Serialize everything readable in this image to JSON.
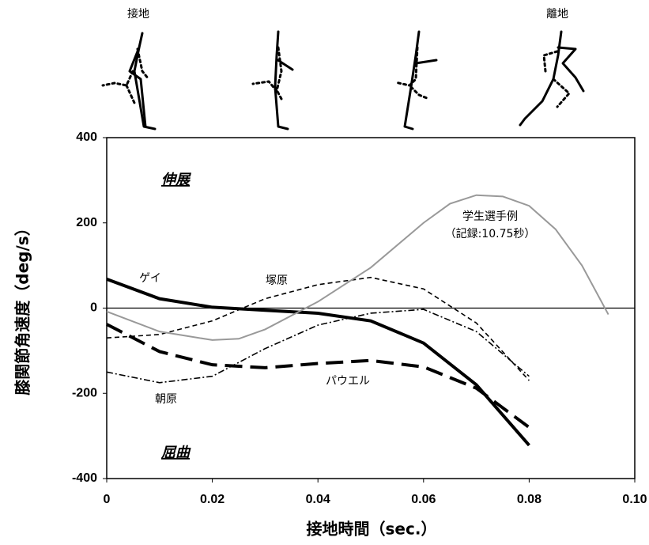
{
  "chart_data": {
    "type": "line",
    "x_label": "接地時間（sec.）",
    "y_label": "膝関節角速度（deg/s）",
    "annotations": [
      "接地",
      "離地",
      "伸展",
      "屈曲",
      "（記録:10.75秒）"
    ],
    "xlim": [
      0,
      0.1
    ],
    "xticks": [
      0,
      0.02,
      0.04,
      0.06,
      0.08,
      {
        "value": 0.1,
        "label": "0.10"
      }
    ],
    "ylim": [
      -400,
      400
    ],
    "yticks": [
      400,
      200,
      0,
      -200,
      -400
    ],
    "series": [
      {
        "name": "ゲイ",
        "color": "#000000",
        "width": 4,
        "dash": "none",
        "x": [
          0,
          0.01,
          0.02,
          0.03,
          0.04,
          0.05,
          0.06,
          0.07,
          0.08
        ],
        "values": [
          68,
          22,
          2,
          -5,
          -12,
          -30,
          -82,
          -180,
          -322
        ]
      },
      {
        "name": "パウエル",
        "color": "#000000",
        "width": 4,
        "dash": "22 10",
        "x": [
          0,
          0.01,
          0.02,
          0.03,
          0.04,
          0.05,
          0.06,
          0.07,
          0.08
        ],
        "values": [
          -38,
          -102,
          -133,
          -140,
          -130,
          -123,
          -138,
          -188,
          -280
        ]
      },
      {
        "name": "塚原",
        "color": "#000000",
        "width": 1.6,
        "dash": "6 4",
        "x": [
          0,
          0.01,
          0.02,
          0.03,
          0.04,
          0.05,
          0.06,
          0.07,
          0.08
        ],
        "values": [
          -70,
          -62,
          -30,
          22,
          55,
          72,
          45,
          -35,
          -170
        ]
      },
      {
        "name": "朝原",
        "color": "#000000",
        "width": 1.6,
        "dash": "8 3 2 3",
        "x": [
          0,
          0.01,
          0.02,
          0.03,
          0.04,
          0.05,
          0.06,
          0.07,
          0.08
        ],
        "values": [
          -150,
          -175,
          -160,
          -95,
          -40,
          -12,
          -3,
          -55,
          -160
        ]
      },
      {
        "name": "学生選手例",
        "color": "#999999",
        "width": 2,
        "dash": "none",
        "x": [
          0,
          0.01,
          0.02,
          0.025,
          0.03,
          0.04,
          0.05,
          0.06,
          0.065,
          0.07,
          0.075,
          0.08,
          0.085,
          0.09,
          0.095
        ],
        "values": [
          -8,
          -55,
          -75,
          -72,
          -50,
          15,
          95,
          200,
          245,
          265,
          262,
          240,
          185,
          100,
          -15
        ]
      }
    ]
  }
}
